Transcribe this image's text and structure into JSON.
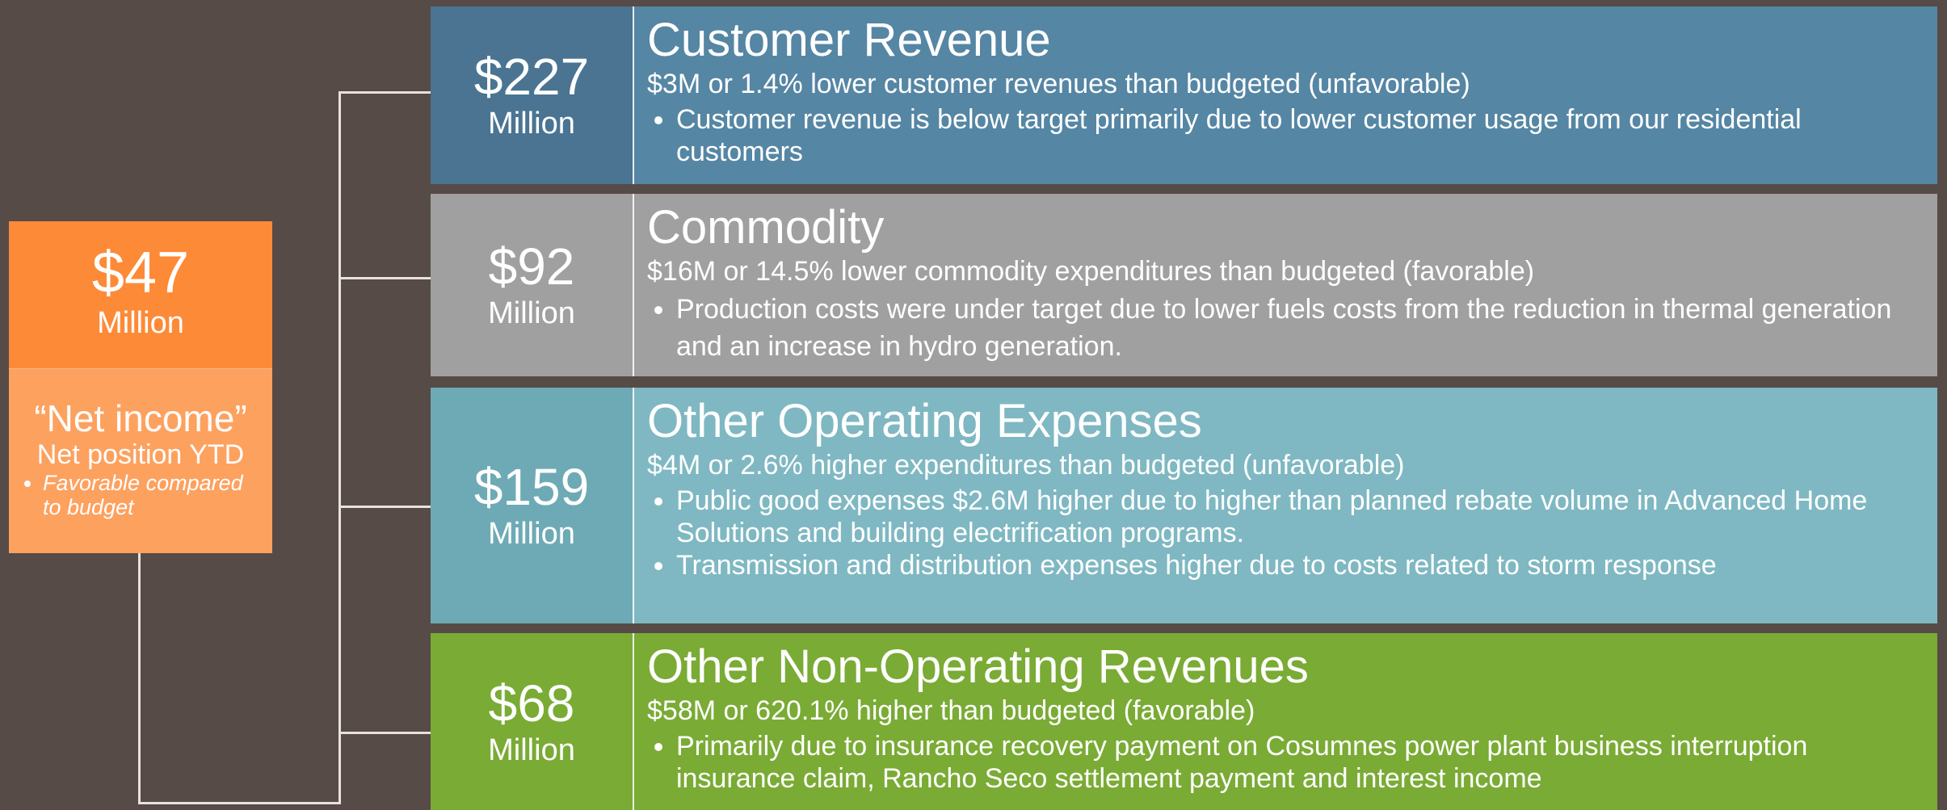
{
  "left": {
    "value": "$47",
    "unit": "Million",
    "label": "“Net income”",
    "sublabel": "Net position YTD",
    "bullet": "Favorable compared to budget"
  },
  "panels": [
    {
      "value": "$227",
      "unit": "Million",
      "title": "Customer Revenue",
      "summary": "$3M or 1.4% lower customer revenues than budgeted (unfavorable)",
      "bullets": [
        "Customer revenue is below target primarily due to lower customer usage from our residential customers"
      ]
    },
    {
      "value": "$92",
      "unit": "Million",
      "title": "Commodity",
      "summary": "$16M or 14.5% lower commodity expenditures than budgeted (favorable)",
      "bullets": [
        "Production costs were under target due to lower fuels costs from the reduction in thermal generation and an increase in hydro generation."
      ]
    },
    {
      "value": "$159",
      "unit": "Million",
      "title": "Other Operating Expenses",
      "summary": "$4M or 2.6% higher expenditures than budgeted (unfavorable)",
      "bullets": [
        "Public good expenses $2.6M higher due to higher than planned rebate volume in Advanced Home Solutions and building electrification programs.",
        "Transmission and distribution expenses higher due to costs related to storm response"
      ]
    },
    {
      "value": "$68",
      "unit": "Million",
      "title": "Other Non-Operating Revenues",
      "summary": "$58M or 620.1% higher than budgeted (favorable)",
      "bullets": [
        "Primarily due to insurance recovery payment on Cosumnes power plant business interruption insurance claim, Rancho Seco settlement payment and interest income"
      ]
    }
  ]
}
